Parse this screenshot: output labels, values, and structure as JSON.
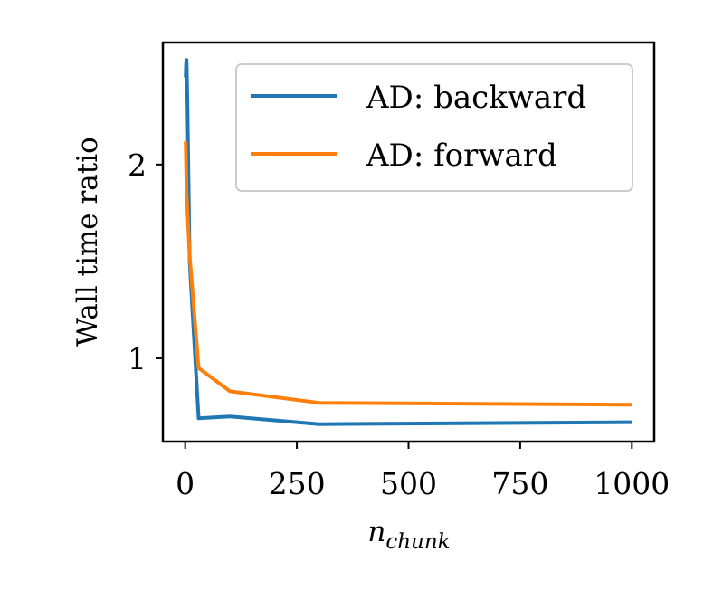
{
  "chart_data": {
    "type": "line",
    "xlabel": "n",
    "xlabel_sub": "chunk",
    "ylabel": "Wall time ratio",
    "xlim": [
      -50,
      1050
    ],
    "ylim": [
      0.57,
      2.63
    ],
    "xticks": [
      0,
      250,
      500,
      750,
      1000
    ],
    "xtick_labels": [
      "0",
      "250",
      "500",
      "750",
      "1000"
    ],
    "yticks": [
      1,
      2
    ],
    "ytick_labels": [
      "1",
      "2"
    ],
    "grid": false,
    "legend_position": "top-right",
    "series": [
      {
        "name": "AD: backward",
        "color": "#1f77b4",
        "x": [
          1,
          2,
          3,
          5,
          10,
          30,
          100,
          300,
          1000
        ],
        "y": [
          2.45,
          2.53,
          2.54,
          2.3,
          1.5,
          0.69,
          0.7,
          0.66,
          0.67
        ]
      },
      {
        "name": "AD: forward",
        "color": "#ff7f0e",
        "x": [
          1,
          3,
          10,
          30,
          100,
          300,
          1000
        ],
        "y": [
          2.12,
          1.85,
          1.53,
          0.95,
          0.83,
          0.77,
          0.76
        ]
      }
    ]
  }
}
